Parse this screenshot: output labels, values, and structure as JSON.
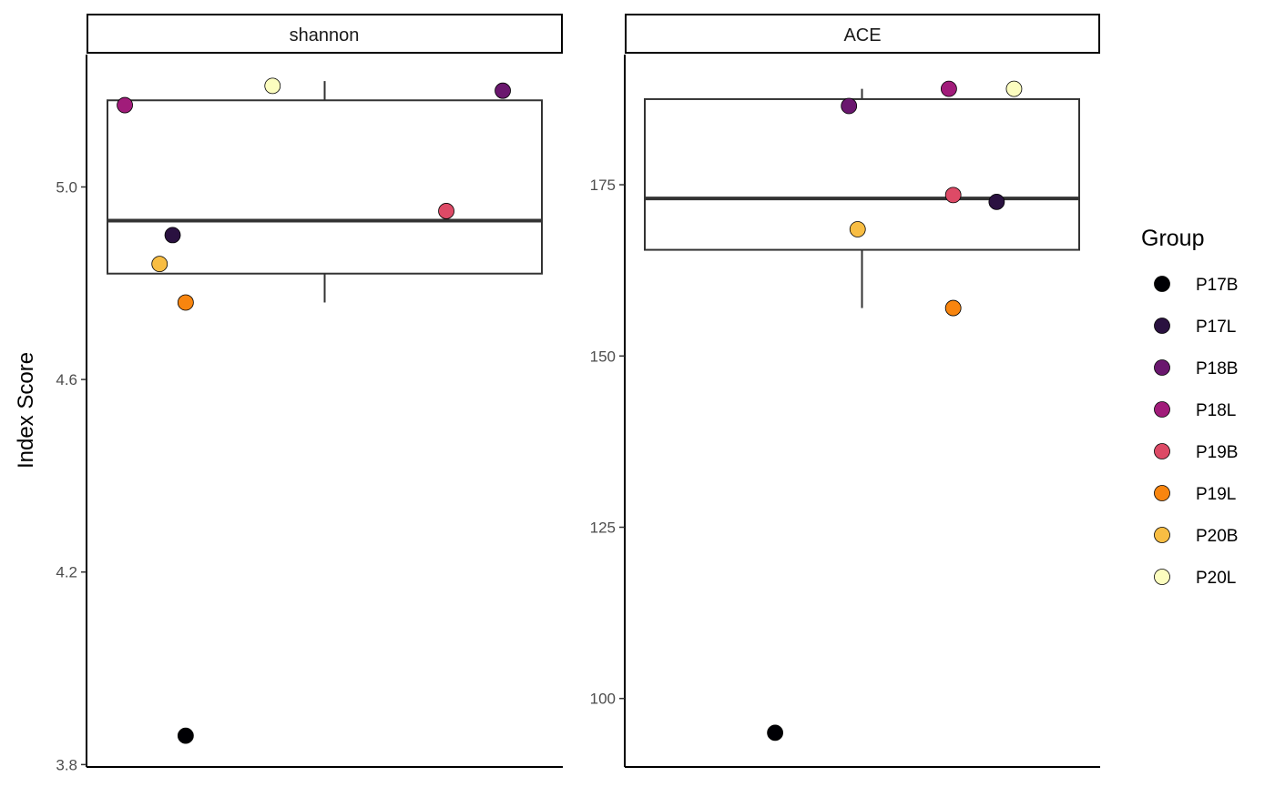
{
  "chart_data": {
    "type": "boxplot-jitter",
    "ylabel": "Index Score",
    "xlabel": "",
    "legend": {
      "title": "Group",
      "placement": "right",
      "groups": [
        {
          "name": "P17B",
          "color": "#000004"
        },
        {
          "name": "P17L",
          "color": "#2a1140"
        },
        {
          "name": "P18B",
          "color": "#6a176e"
        },
        {
          "name": "P18L",
          "color": "#a11c7a"
        },
        {
          "name": "P19B",
          "color": "#dd4a66"
        },
        {
          "name": "P19L",
          "color": "#f8850f"
        },
        {
          "name": "P20B",
          "color": "#f8bd43"
        },
        {
          "name": "P20L",
          "color": "#fcfdbf"
        }
      ]
    },
    "panels": [
      {
        "title": "shannon",
        "ylim": [
          3.795,
          5.275
        ],
        "yticks": [
          3.8,
          4.2,
          4.6,
          5.0
        ],
        "ytick_labels": [
          "3.8",
          "4.2",
          "4.6",
          "5.0"
        ],
        "box": {
          "whisker_low": 4.76,
          "q1": 4.82,
          "median": 4.93,
          "q3": 5.18,
          "whisker_high": 5.22
        },
        "points": [
          {
            "group": "P17B",
            "x": 0.18,
            "y": 3.86
          },
          {
            "group": "P17L",
            "x": 0.15,
            "y": 4.9
          },
          {
            "group": "P18B",
            "x": 0.91,
            "y": 5.2
          },
          {
            "group": "P18L",
            "x": 0.04,
            "y": 5.17
          },
          {
            "group": "P19B",
            "x": 0.78,
            "y": 4.95
          },
          {
            "group": "P19L",
            "x": 0.18,
            "y": 4.76
          },
          {
            "group": "P20B",
            "x": 0.12,
            "y": 4.84
          },
          {
            "group": "P20L",
            "x": 0.38,
            "y": 5.21
          }
        ]
      },
      {
        "title": "ACE",
        "ylim": [
          90,
          194
        ],
        "yticks": [
          100,
          125,
          150,
          175
        ],
        "ytick_labels": [
          "100",
          "125",
          "150",
          "175"
        ],
        "box": {
          "whisker_low": 157,
          "q1": 165.5,
          "median": 173,
          "q3": 187.5,
          "whisker_high": 189
        },
        "points": [
          {
            "group": "P17B",
            "x": 0.3,
            "y": 95
          },
          {
            "group": "P17L",
            "x": 0.81,
            "y": 172.5
          },
          {
            "group": "P18B",
            "x": 0.47,
            "y": 186.5
          },
          {
            "group": "P18L",
            "x": 0.7,
            "y": 189
          },
          {
            "group": "P19B",
            "x": 0.71,
            "y": 173.5
          },
          {
            "group": "P19L",
            "x": 0.71,
            "y": 157
          },
          {
            "group": "P20B",
            "x": 0.49,
            "y": 168.5
          },
          {
            "group": "P20L",
            "x": 0.85,
            "y": 189
          }
        ]
      }
    ]
  }
}
